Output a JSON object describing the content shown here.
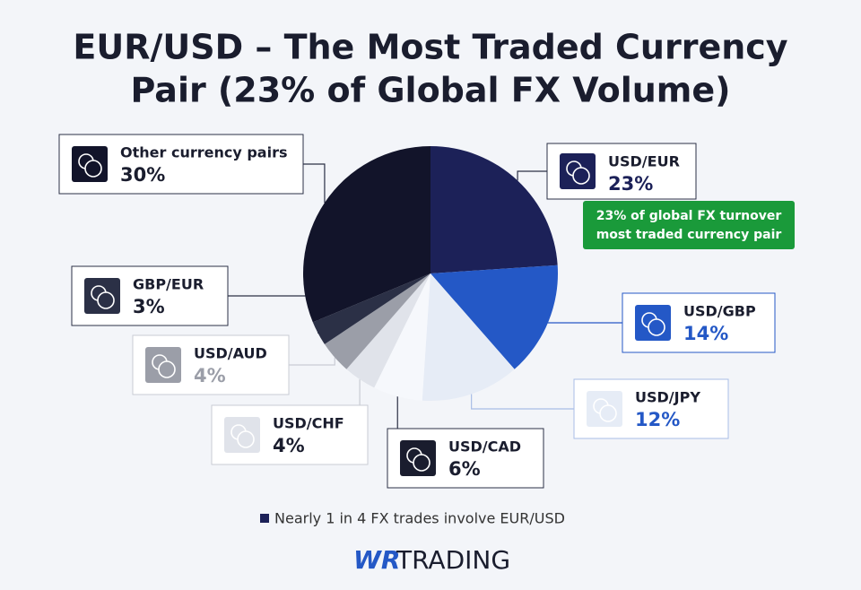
{
  "chart_data": {
    "type": "pie",
    "title": [
      "EUR/USD – The Most Traded Currency",
      "Pair (23% of Global FX Volume)"
    ],
    "categories": [
      "USD/EUR",
      "USD/GBP",
      "USD/JPY",
      "USD/CAD",
      "USD/CHF",
      "USD/AUD",
      "GBP/EUR",
      "Other currency pairs"
    ],
    "values": [
      23,
      14,
      12,
      6,
      4,
      4,
      3,
      30
    ],
    "value_labels": [
      "23%",
      "14%",
      "12%",
      "6%",
      "4%",
      "4%",
      "3%",
      "30%"
    ],
    "colors": [
      "#1c2158",
      "#2458c6",
      "#e6ecf6",
      "#f6f8fc",
      "#e0e3ea",
      "#9b9ea8",
      "#2b3046",
      "#12142a"
    ],
    "annotation": [
      "23% of global FX turnover",
      "most traded currency pair"
    ],
    "footnote": "Nearly 1 in 4 FX trades involve EUR/USD",
    "brand": [
      "WR",
      "TRADING"
    ]
  }
}
